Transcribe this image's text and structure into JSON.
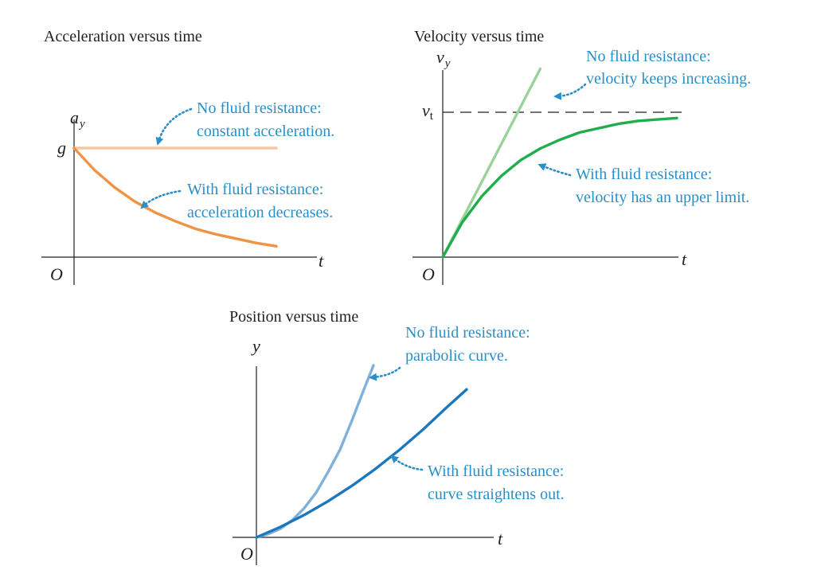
{
  "colors": {
    "accel_no_resistance": "#f6c7a0",
    "accel_with_resistance": "#ef9445",
    "velocity_no_resistance": "#9ad39a",
    "velocity_with_resistance": "#1fae4b",
    "position_no_resistance": "#7fb1da",
    "position_with_resistance": "#1b78bd",
    "annotation": "#2b8fc7",
    "axis": "#231f20"
  },
  "chart_data": [
    {
      "type": "line",
      "title": "Acceleration versus time",
      "xlabel": "t",
      "ylabel": "a",
      "ylabel_sub": "y",
      "origin_label": "O",
      "y_tick_label": "g",
      "xlim": [
        0,
        1.3
      ],
      "ylim": [
        0,
        1.1
      ],
      "series": [
        {
          "key": "no_resistance",
          "color_key": "accel_no_resistance",
          "x": [
            0,
            1.0
          ],
          "y": [
            1.0,
            1.0
          ]
        },
        {
          "key": "with_resistance",
          "color_key": "accel_with_resistance",
          "x": [
            0,
            0.1,
            0.2,
            0.3,
            0.4,
            0.5,
            0.6,
            0.7,
            0.8,
            0.9,
            1.0
          ],
          "y": [
            1.0,
            0.8,
            0.64,
            0.51,
            0.41,
            0.33,
            0.26,
            0.21,
            0.17,
            0.13,
            0.1
          ]
        }
      ],
      "annotations": [
        {
          "lines": [
            "No fluid resistance:",
            "constant acceleration."
          ]
        },
        {
          "lines": [
            "With fluid resistance:",
            "acceleration decreases."
          ]
        }
      ]
    },
    {
      "type": "line",
      "title": "Velocity versus time",
      "xlabel": "t",
      "ylabel": "v",
      "ylabel_sub": "y",
      "origin_label": "O",
      "y_tick_label": "v",
      "y_tick_sub": "t",
      "terminal_velocity": 1.0,
      "xlim": [
        0,
        1.3
      ],
      "ylim": [
        0,
        1.5
      ],
      "series": [
        {
          "key": "no_resistance",
          "color_key": "velocity_no_resistance",
          "x": [
            0,
            0.5
          ],
          "y": [
            0,
            1.3
          ]
        },
        {
          "key": "with_resistance",
          "color_key": "velocity_with_resistance",
          "x": [
            0,
            0.1,
            0.2,
            0.3,
            0.4,
            0.5,
            0.6,
            0.7,
            0.8,
            0.9,
            1.0,
            1.1,
            1.2
          ],
          "y": [
            0,
            0.24,
            0.42,
            0.56,
            0.67,
            0.75,
            0.81,
            0.86,
            0.89,
            0.92,
            0.94,
            0.95,
            0.96
          ]
        }
      ],
      "annotations": [
        {
          "lines": [
            "No fluid resistance:",
            "velocity keeps increasing."
          ]
        },
        {
          "lines": [
            "With fluid resistance:",
            "velocity has an upper limit."
          ]
        }
      ]
    },
    {
      "type": "line",
      "title": "Position versus time",
      "xlabel": "t",
      "ylabel": "y",
      "origin_label": "O",
      "xlim": [
        0,
        1.0
      ],
      "ylim": [
        0,
        1.1
      ],
      "series": [
        {
          "key": "no_resistance",
          "color_key": "position_no_resistance",
          "x": [
            0,
            0.05,
            0.1,
            0.15,
            0.2,
            0.25,
            0.3,
            0.35,
            0.4,
            0.45,
            0.49
          ],
          "y": [
            0,
            0.02,
            0.05,
            0.1,
            0.17,
            0.26,
            0.38,
            0.51,
            0.68,
            0.86,
            1.0
          ]
        },
        {
          "key": "with_resistance",
          "color_key": "position_with_resistance",
          "x": [
            0,
            0.1,
            0.2,
            0.3,
            0.4,
            0.5,
            0.6,
            0.7,
            0.8,
            0.88
          ],
          "y": [
            0,
            0.06,
            0.13,
            0.21,
            0.3,
            0.4,
            0.51,
            0.63,
            0.76,
            0.86
          ]
        }
      ],
      "annotations": [
        {
          "lines": [
            "No fluid resistance:",
            "parabolic curve."
          ]
        },
        {
          "lines": [
            "With fluid resistance:",
            "curve straightens out."
          ]
        }
      ]
    }
  ]
}
